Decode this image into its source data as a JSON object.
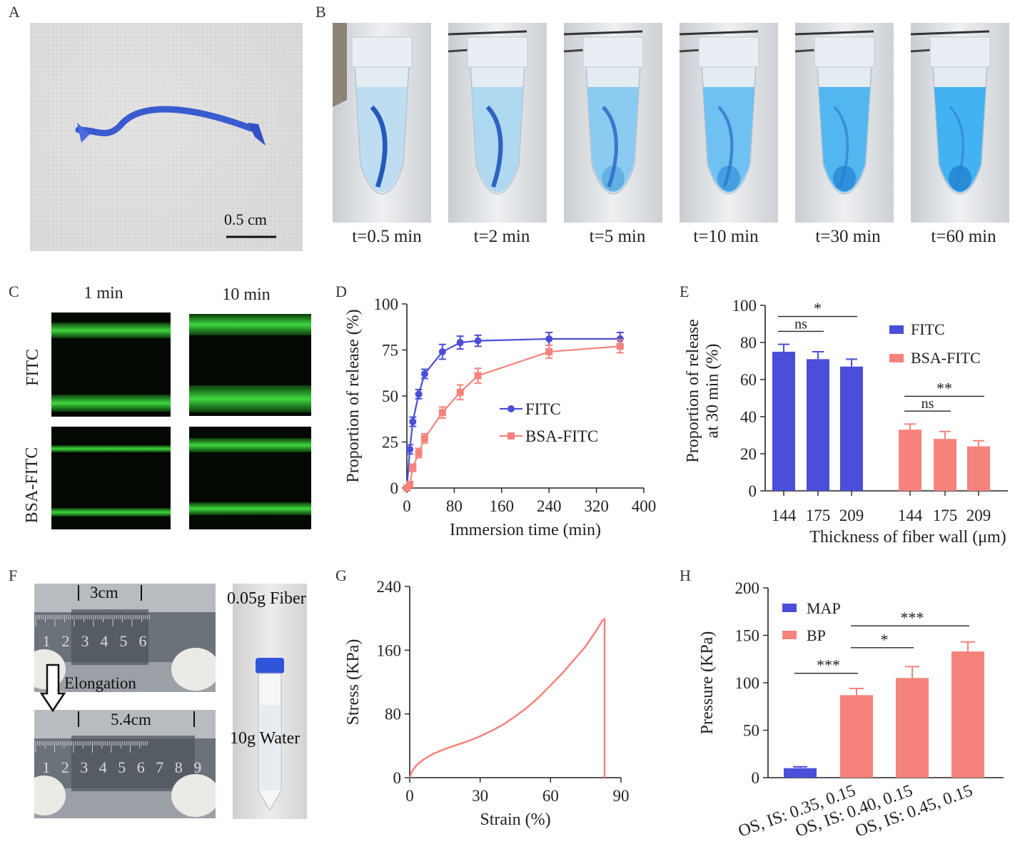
{
  "panel_labels": {
    "A": "A",
    "B": "B",
    "C": "C",
    "D": "D",
    "E": "E",
    "F": "F",
    "G": "G",
    "H": "H"
  },
  "colors": {
    "blue": "#4a4ed8",
    "salmon": "#f5837c",
    "green": "#3fd63f"
  },
  "panelA": {
    "scale_bar": "0.5 cm"
  },
  "panelB": {
    "times": [
      "t=0.5 min",
      "t=2 min",
      "t=5 min",
      "t=10 min",
      "t=30 min",
      "t=60 min"
    ],
    "dye_levels": [
      0.1,
      0.2,
      0.45,
      0.65,
      0.85,
      0.95
    ]
  },
  "panelC": {
    "columns": [
      "1 min",
      "10 min"
    ],
    "rows": [
      "FITC",
      "BSA-FITC"
    ]
  },
  "panelF": {
    "top_length": "3cm",
    "bottom_length": "5.4cm",
    "arrow_label": "Elongation",
    "ruler_top": [
      "1",
      "2",
      "3",
      "4",
      "5",
      "6"
    ],
    "ruler_bottom": [
      "1",
      "2",
      "3",
      "4",
      "5",
      "6",
      "7",
      "8",
      "9"
    ],
    "fiber_label": "0.05g Fiber",
    "water_label": "10g Water"
  },
  "chart_data": [
    {
      "panel": "D",
      "type": "line",
      "xlabel": "Immersion time (min)",
      "ylabel": "Proportion of release (%)",
      "xlim": [
        0,
        400
      ],
      "ylim": [
        0,
        100
      ],
      "xticks": [
        "0",
        "80",
        "160",
        "240",
        "320",
        "400"
      ],
      "yticks": [
        "0",
        "25",
        "50",
        "75",
        "100"
      ],
      "legend": "center-right",
      "series": [
        {
          "name": "FITC",
          "color": "#4a4ed8",
          "x": [
            0,
            5,
            10,
            20,
            30,
            60,
            90,
            120,
            240,
            360
          ],
          "y": [
            0,
            21,
            36,
            51,
            62,
            74,
            79,
            80,
            81,
            81
          ],
          "err": [
            1,
            2.5,
            2.5,
            2.5,
            2.5,
            4,
            3.5,
            3,
            3.5,
            3.5
          ]
        },
        {
          "name": "BSA-FITC",
          "color": "#f5837c",
          "x": [
            0,
            5,
            10,
            20,
            30,
            60,
            90,
            120,
            240,
            360
          ],
          "y": [
            0,
            2,
            11,
            19,
            27,
            41,
            52,
            61,
            74,
            77
          ],
          "err": [
            1,
            1.5,
            2,
            2.5,
            2.5,
            3,
            4,
            4,
            3.5,
            3.5
          ]
        }
      ]
    },
    {
      "panel": "E",
      "type": "bar",
      "xlabel": "Thickness of fiber wall (μm)",
      "ylabel": "Proportion of release at 30 min (%)",
      "ylabel_lines": [
        "Proportion of release",
        "at 30 min (%)"
      ],
      "ylim": [
        0,
        100
      ],
      "yticks": [
        "0",
        "20",
        "40",
        "60",
        "80",
        "100"
      ],
      "categories": [
        "144",
        "175",
        "209"
      ],
      "legend": "top-right",
      "series": [
        {
          "name": "FITC",
          "color": "#4a4ed8",
          "values": [
            75,
            71,
            67
          ],
          "err": [
            4,
            4,
            4
          ]
        },
        {
          "name": "BSA-FITC",
          "color": "#f5837c",
          "values": [
            33,
            28,
            24
          ],
          "err": [
            3,
            4,
            3
          ]
        }
      ],
      "annotations": [
        {
          "series": 0,
          "from": 0,
          "to": 1,
          "label": "ns"
        },
        {
          "series": 0,
          "from": 0,
          "to": 2,
          "label": "*"
        },
        {
          "series": 1,
          "from": 0,
          "to": 1,
          "label": "ns"
        },
        {
          "series": 1,
          "from": 0,
          "to": 2,
          "label": "**"
        }
      ]
    },
    {
      "panel": "G",
      "type": "line",
      "xlabel": "Strain (%)",
      "ylabel": "Stress (KPa)",
      "xlim": [
        0,
        90
      ],
      "ylim": [
        0,
        240
      ],
      "xticks": [
        "0",
        "30",
        "60",
        "90"
      ],
      "yticks": [
        "0",
        "80",
        "160",
        "240"
      ],
      "color": "#f5837c",
      "x": [
        0,
        1,
        3,
        6,
        10,
        15,
        20,
        25,
        30,
        35,
        40,
        45,
        50,
        55,
        60,
        65,
        70,
        75,
        80,
        82,
        83,
        83
      ],
      "y": [
        0,
        8,
        16,
        23,
        30,
        36,
        41,
        46,
        52,
        59,
        67,
        77,
        88,
        101,
        116,
        131,
        148,
        165,
        187,
        197,
        199,
        0
      ]
    },
    {
      "panel": "H",
      "type": "bar",
      "ylabel": "Pressure (KPa)",
      "ylim": [
        0,
        200
      ],
      "yticks": [
        "0",
        "50",
        "100",
        "150",
        "200"
      ],
      "categories": [
        "OS, IS: 0.35, 0.15",
        "OS, IS: 0.40, 0.15",
        "OS, IS: 0.45, 0.15"
      ],
      "legend": "top-left",
      "legend_items": [
        {
          "name": "MAP",
          "color": "#4a4ed8"
        },
        {
          "name": "BP",
          "color": "#f5837c"
        }
      ],
      "bars": [
        {
          "series": "MAP",
          "value": 10,
          "err": 1.5,
          "color": "#4a4ed8"
        },
        {
          "series": "BP",
          "value": 87,
          "err": 7,
          "color": "#f5837c"
        },
        {
          "series": "BP",
          "value": 105,
          "err": 12,
          "color": "#f5837c"
        },
        {
          "series": "BP",
          "value": 133,
          "err": 10,
          "color": "#f5837c"
        }
      ],
      "annotations": [
        {
          "from": 0,
          "to": 1,
          "label": "***",
          "y": 110
        },
        {
          "from": 1,
          "to": 2,
          "label": "*",
          "y": 137
        },
        {
          "from": 1,
          "to": 3,
          "label": "***",
          "y": 160
        }
      ]
    }
  ]
}
